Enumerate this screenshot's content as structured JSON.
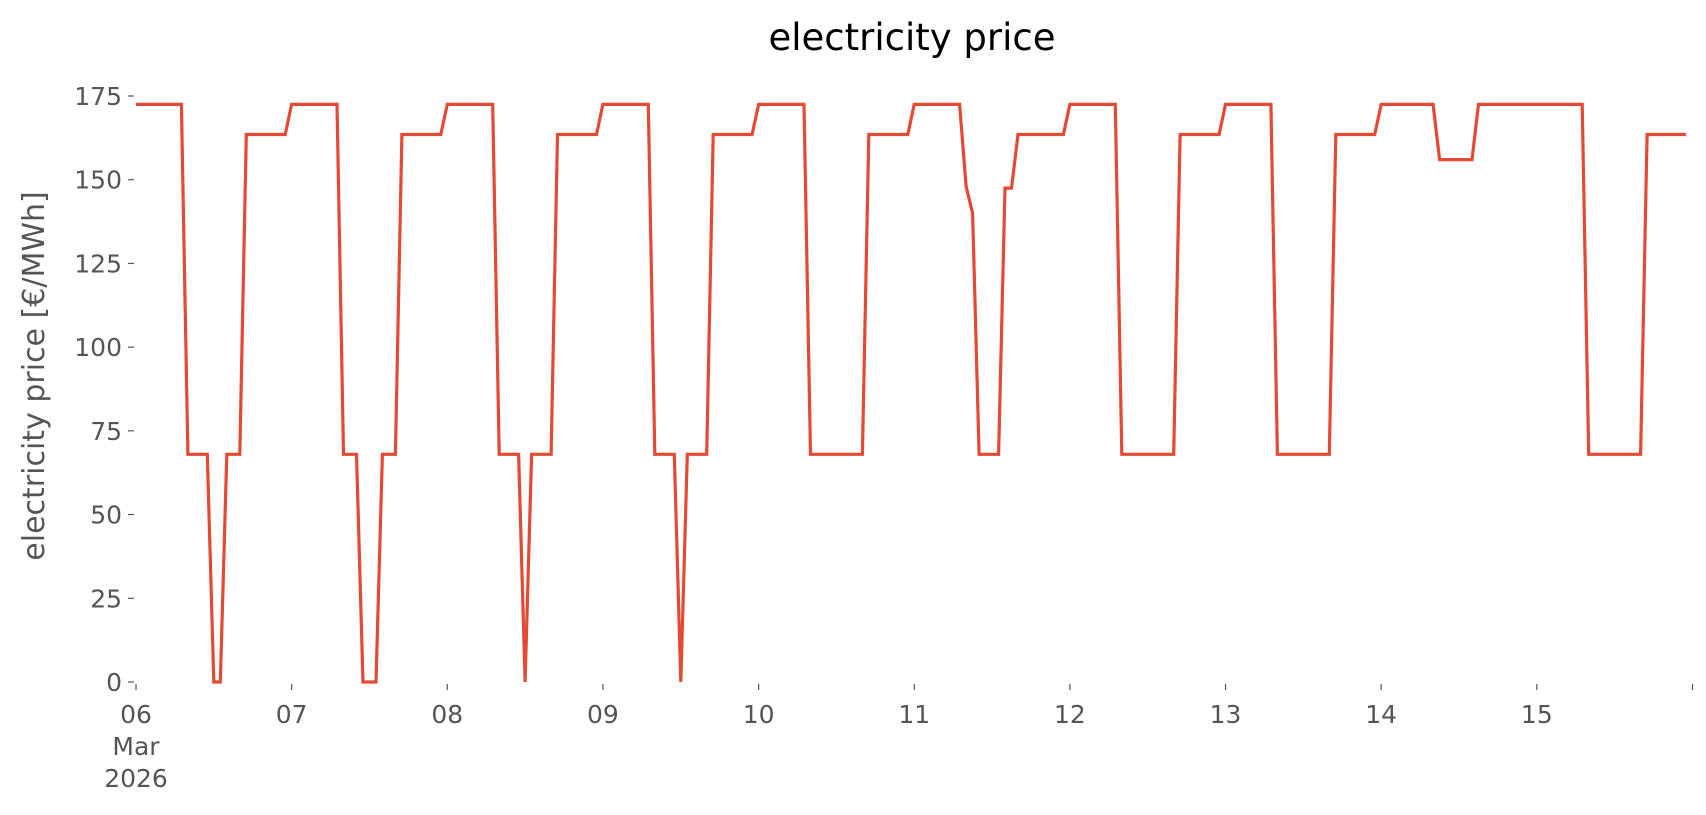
{
  "chart_data": {
    "type": "line",
    "title": "electricity price",
    "xlabel": "",
    "ylabel": "electricity price [€/MWh]",
    "xlim": [
      "2026-03-06T00:00",
      "2026-03-15T23:00"
    ],
    "ylim": [
      0,
      175
    ],
    "grid": false,
    "yticks": [
      0,
      25,
      50,
      75,
      100,
      125,
      150,
      175
    ],
    "xticks": [
      {
        "date": "2026-03-06",
        "lines": [
          "06",
          "Mar",
          "2026"
        ]
      },
      {
        "date": "2026-03-07",
        "lines": [
          "07"
        ]
      },
      {
        "date": "2026-03-08",
        "lines": [
          "08"
        ]
      },
      {
        "date": "2026-03-09",
        "lines": [
          "09"
        ]
      },
      {
        "date": "2026-03-10",
        "lines": [
          "10"
        ]
      },
      {
        "date": "2026-03-11",
        "lines": [
          "11"
        ]
      },
      {
        "date": "2026-03-12",
        "lines": [
          "12"
        ]
      },
      {
        "date": "2026-03-13",
        "lines": [
          "13"
        ]
      },
      {
        "date": "2026-03-14",
        "lines": [
          "14"
        ]
      },
      {
        "date": "2026-03-15",
        "lines": [
          "15"
        ]
      },
      {
        "date": "2026-03-16",
        "lines": [
          ""
        ]
      }
    ],
    "series": [
      {
        "color": "#e24a33",
        "points": [
          [
            "2026-03-06T00:00",
            172.5
          ],
          [
            "2026-03-06T07:00",
            172.5
          ],
          [
            "2026-03-06T08:00",
            68
          ],
          [
            "2026-03-06T11:00",
            68
          ],
          [
            "2026-03-06T12:00",
            0
          ],
          [
            "2026-03-06T13:00",
            0
          ],
          [
            "2026-03-06T14:00",
            68
          ],
          [
            "2026-03-06T16:00",
            68
          ],
          [
            "2026-03-06T17:00",
            163.5
          ],
          [
            "2026-03-06T23:00",
            163.5
          ],
          [
            "2026-03-07T00:00",
            172.5
          ],
          [
            "2026-03-07T07:00",
            172.5
          ],
          [
            "2026-03-07T08:00",
            68
          ],
          [
            "2026-03-07T10:00",
            68
          ],
          [
            "2026-03-07T11:00",
            0
          ],
          [
            "2026-03-07T13:00",
            0
          ],
          [
            "2026-03-07T14:00",
            68
          ],
          [
            "2026-03-07T16:00",
            68
          ],
          [
            "2026-03-07T17:00",
            163.5
          ],
          [
            "2026-03-07T23:00",
            163.5
          ],
          [
            "2026-03-08T00:00",
            172.5
          ],
          [
            "2026-03-08T07:00",
            172.5
          ],
          [
            "2026-03-08T08:00",
            68
          ],
          [
            "2026-03-08T11:00",
            68
          ],
          [
            "2026-03-08T12:00",
            0
          ],
          [
            "2026-03-08T13:00",
            68
          ],
          [
            "2026-03-08T16:00",
            68
          ],
          [
            "2026-03-08T17:00",
            163.5
          ],
          [
            "2026-03-08T23:00",
            163.5
          ],
          [
            "2026-03-09T00:00",
            172.5
          ],
          [
            "2026-03-09T07:00",
            172.5
          ],
          [
            "2026-03-09T08:00",
            68
          ],
          [
            "2026-03-09T11:00",
            68
          ],
          [
            "2026-03-09T12:00",
            0
          ],
          [
            "2026-03-09T13:00",
            68
          ],
          [
            "2026-03-09T16:00",
            68
          ],
          [
            "2026-03-09T17:00",
            163.5
          ],
          [
            "2026-03-09T23:00",
            163.5
          ],
          [
            "2026-03-10T00:00",
            172.5
          ],
          [
            "2026-03-10T07:00",
            172.5
          ],
          [
            "2026-03-10T08:00",
            68
          ],
          [
            "2026-03-10T16:00",
            68
          ],
          [
            "2026-03-10T17:00",
            163.5
          ],
          [
            "2026-03-10T23:00",
            163.5
          ],
          [
            "2026-03-11T00:00",
            172.5
          ],
          [
            "2026-03-11T07:00",
            172.5
          ],
          [
            "2026-03-11T08:00",
            148
          ],
          [
            "2026-03-11T09:00",
            140
          ],
          [
            "2026-03-11T10:00",
            68
          ],
          [
            "2026-03-11T13:00",
            68
          ],
          [
            "2026-03-11T14:00",
            147.5
          ],
          [
            "2026-03-11T15:00",
            147.5
          ],
          [
            "2026-03-11T16:00",
            163.5
          ],
          [
            "2026-03-11T23:00",
            163.5
          ],
          [
            "2026-03-12T00:00",
            172.5
          ],
          [
            "2026-03-12T07:00",
            172.5
          ],
          [
            "2026-03-12T08:00",
            68
          ],
          [
            "2026-03-12T16:00",
            68
          ],
          [
            "2026-03-12T17:00",
            163.5
          ],
          [
            "2026-03-12T23:00",
            163.5
          ],
          [
            "2026-03-13T00:00",
            172.5
          ],
          [
            "2026-03-13T07:00",
            172.5
          ],
          [
            "2026-03-13T08:00",
            68
          ],
          [
            "2026-03-13T16:00",
            68
          ],
          [
            "2026-03-13T17:00",
            163.5
          ],
          [
            "2026-03-13T23:00",
            163.5
          ],
          [
            "2026-03-14T00:00",
            172.5
          ],
          [
            "2026-03-14T08:00",
            172.5
          ],
          [
            "2026-03-14T09:00",
            156
          ],
          [
            "2026-03-14T14:00",
            156
          ],
          [
            "2026-03-14T15:00",
            172.5
          ],
          [
            "2026-03-15T07:00",
            172.5
          ],
          [
            "2026-03-15T08:00",
            68
          ],
          [
            "2026-03-15T16:00",
            68
          ],
          [
            "2026-03-15T17:00",
            163.5
          ],
          [
            "2026-03-15T23:00",
            163.5
          ]
        ]
      }
    ]
  }
}
